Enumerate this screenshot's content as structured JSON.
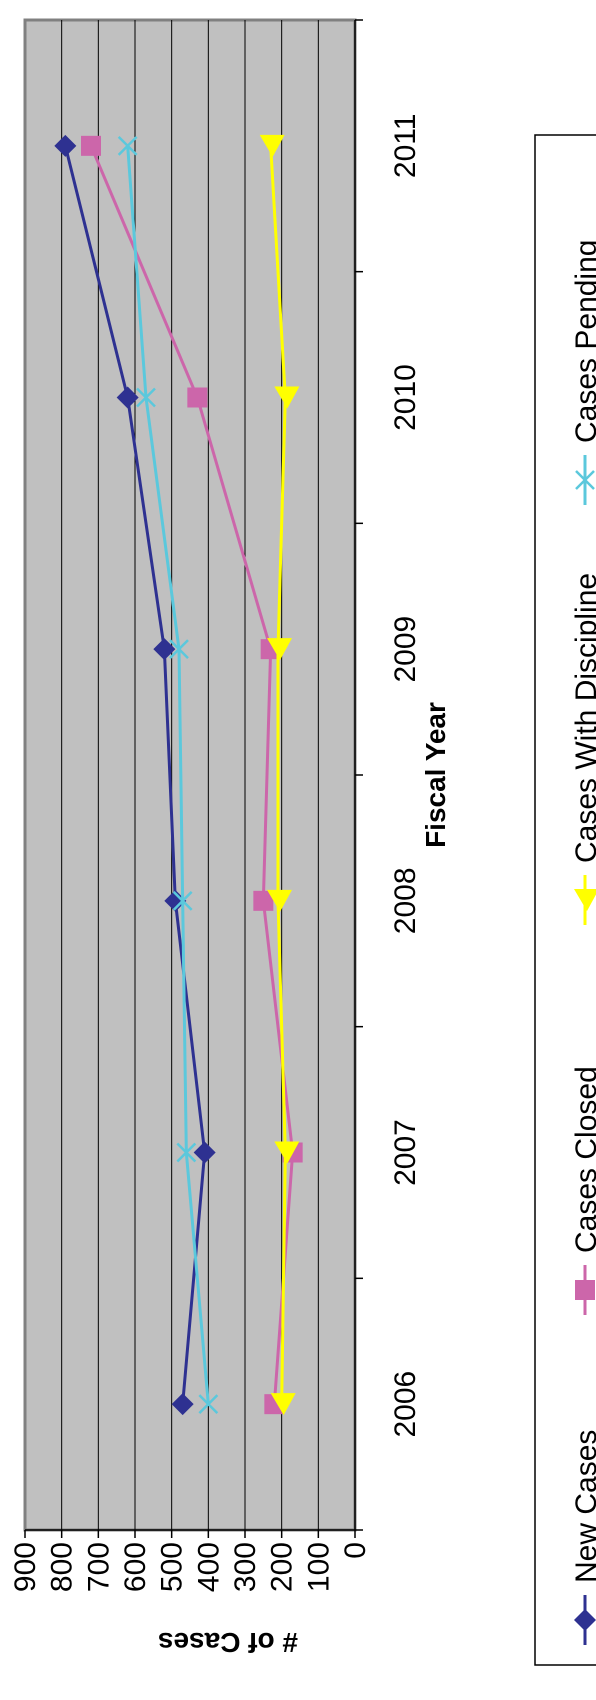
{
  "chart_data": {
    "type": "line",
    "title": "",
    "xlabel": "Fiscal Year",
    "ylabel": "# of Cases",
    "categories": [
      "2006",
      "2007",
      "2008",
      "2009",
      "2010",
      "2011"
    ],
    "ylim": [
      0,
      900
    ],
    "yticks": [
      "0",
      "100",
      "200",
      "300",
      "400",
      "500",
      "600",
      "700",
      "800",
      "900"
    ],
    "grid": true,
    "legend_position": "bottom",
    "plot_background": "#c0c0c0",
    "series": [
      {
        "name": "New Cases",
        "values": [
          470,
          410,
          490,
          520,
          620,
          790
        ],
        "color": "#2e3191",
        "marker": "diamond"
      },
      {
        "name": "Cases Closed",
        "values": [
          220,
          170,
          250,
          230,
          430,
          720
        ],
        "color": "#cc66aa",
        "marker": "square"
      },
      {
        "name": "Cases With Discipline",
        "values": [
          200,
          190,
          210,
          210,
          190,
          230
        ],
        "color": "#ffff00",
        "marker": "triangle"
      },
      {
        "name": "Cases Pending",
        "values": [
          400,
          460,
          470,
          480,
          570,
          620
        ],
        "color": "#5bc8dc",
        "marker": "x"
      }
    ]
  }
}
